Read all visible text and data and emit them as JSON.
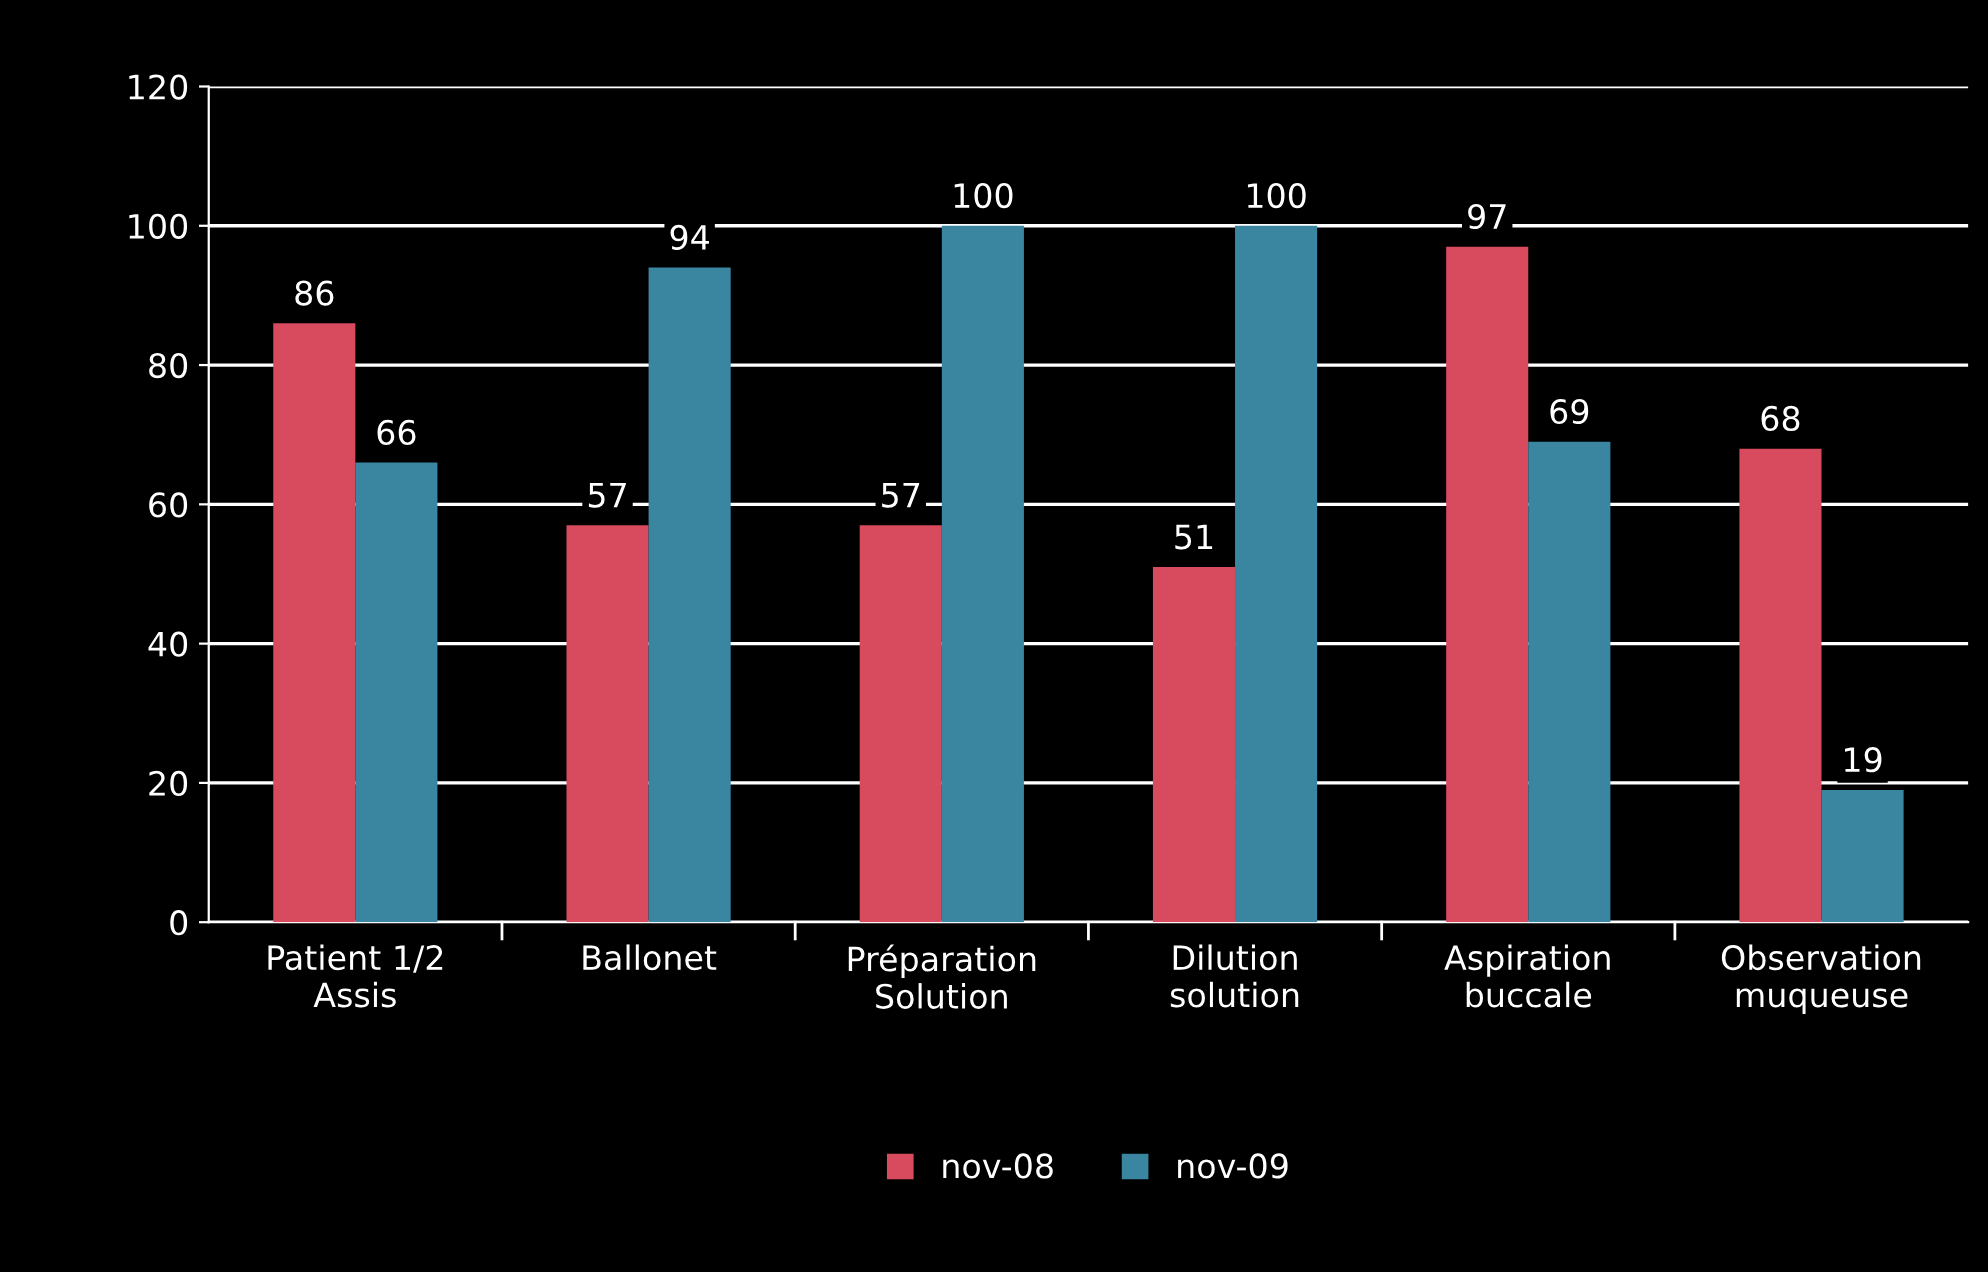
{
  "chart_data": {
    "type": "bar",
    "categories": [
      "Patient 1/2\nAssis",
      "Ballonet",
      "Préparation\nSolution",
      "Dilution\nsolution",
      "Aspiration\nbuccale",
      "Observation\nmuqueuse"
    ],
    "series": [
      {
        "name": "nov-08",
        "color": "#d84a5e",
        "values": [
          86,
          57,
          57,
          51,
          97,
          68
        ]
      },
      {
        "name": "nov-09",
        "color": "#3a86a0",
        "values": [
          66,
          94,
          100,
          100,
          69,
          19
        ]
      }
    ],
    "ylim": [
      0,
      120
    ],
    "yticks": [
      0,
      20,
      40,
      60,
      80,
      100,
      120
    ],
    "grid": "y",
    "legend": "bottom",
    "data_labels": true
  }
}
